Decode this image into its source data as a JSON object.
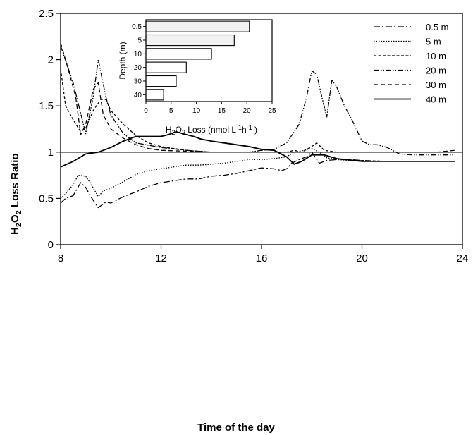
{
  "chart_data": [
    {
      "type": "line",
      "ylabel": "H2O2 Loss Ratio",
      "ylabel_parts": {
        "a": "H",
        "b": "2",
        "c": "O",
        "d": "2",
        "e": " Loss Ratio"
      },
      "xlabel": "Time of the day",
      "xlim": [
        8,
        24
      ],
      "ylim": [
        0,
        2.5
      ],
      "xticks": [
        "8",
        "12",
        "16",
        "20",
        "24"
      ],
      "yticks": [
        "0",
        "0.5",
        "1",
        "1.5",
        "2",
        "2.5"
      ],
      "reference_line": 1,
      "legend_position": "top-right",
      "series": [
        {
          "name": "0.5 m",
          "dash": "9 3 2 3",
          "width": 1.3,
          "x": [
            8.0,
            8.2,
            8.5,
            8.8,
            9.0,
            9.2,
            9.5,
            9.8,
            10.0,
            10.5,
            11.0,
            11.5,
            12.0,
            12.5,
            13.0,
            13.5,
            14.0,
            14.5,
            15.0,
            15.5,
            16.0,
            16.5,
            16.8,
            17.0,
            17.2,
            17.5,
            17.8,
            18.0,
            18.3,
            18.6,
            19.0,
            19.5,
            20.0,
            21.0,
            22.0,
            23.0,
            23.7
          ],
          "y": [
            0.45,
            0.5,
            0.53,
            0.67,
            0.62,
            0.52,
            0.4,
            0.46,
            0.45,
            0.52,
            0.57,
            0.63,
            0.67,
            0.69,
            0.71,
            0.71,
            0.74,
            0.75,
            0.77,
            0.8,
            0.83,
            0.82,
            0.8,
            0.82,
            0.88,
            0.92,
            0.95,
            1.0,
            0.88,
            0.91,
            0.92,
            0.92,
            0.91,
            0.9,
            0.9,
            0.9,
            0.9
          ]
        },
        {
          "name": "5 m",
          "dash": "1.5 2",
          "width": 1.3,
          "x": [
            8.0,
            8.2,
            8.5,
            8.7,
            9.0,
            9.2,
            9.5,
            9.7,
            10.0,
            10.5,
            11.0,
            11.5,
            12.0,
            12.5,
            13.0,
            13.5,
            14.0,
            14.5,
            15.0,
            15.5,
            16.0,
            16.5,
            17.0,
            17.3,
            17.7,
            18.0,
            18.3,
            18.6,
            19.0,
            19.5,
            20.0,
            21.0,
            22.0,
            23.0,
            23.7
          ],
          "y": [
            0.5,
            0.55,
            0.65,
            0.75,
            0.74,
            0.66,
            0.52,
            0.58,
            0.61,
            0.68,
            0.76,
            0.8,
            0.82,
            0.84,
            0.86,
            0.86,
            0.87,
            0.88,
            0.9,
            0.92,
            0.92,
            0.93,
            0.95,
            1.0,
            1.02,
            1.04,
            1.0,
            0.94,
            0.92,
            0.91,
            0.91,
            0.9,
            0.9,
            0.9,
            0.9
          ]
        },
        {
          "name": "10 m",
          "dash": "4 2.5",
          "width": 1.3,
          "x": [
            8.0,
            8.2,
            8.5,
            8.8,
            9.0,
            9.3,
            9.6,
            9.8,
            10.0,
            10.5,
            11.0,
            11.5,
            12.0,
            13.0,
            14.0,
            15.0,
            16.0,
            17.0,
            17.3,
            17.6,
            18.0,
            18.2,
            18.5,
            19.0,
            20.0,
            21.0,
            22.0,
            23.0,
            23.7
          ],
          "y": [
            1.9,
            1.5,
            1.35,
            1.22,
            1.26,
            1.45,
            1.57,
            1.57,
            1.45,
            1.3,
            1.18,
            1.1,
            1.06,
            1.02,
            1.0,
            1.0,
            1.0,
            1.0,
            1.02,
            1.0,
            1.06,
            1.1,
            1.02,
            1.0,
            1.0,
            1.0,
            1.0,
            1.0,
            1.0
          ]
        },
        {
          "name": "20 m",
          "dash": "8 2 1.5 2 1.5 2",
          "width": 1.3,
          "x": [
            8.0,
            8.5,
            9.0,
            9.3,
            9.5,
            9.8,
            10.0,
            10.5,
            11.0,
            12.0,
            13.0,
            14.0,
            15.0,
            15.5,
            16.0,
            16.5,
            17.0,
            17.5,
            17.8,
            18.0,
            18.2,
            18.4,
            18.6,
            18.8,
            19.0,
            19.3,
            19.6,
            20.0,
            20.3,
            20.6,
            21.0,
            21.5,
            22.0,
            23.0,
            23.7
          ],
          "y": [
            2.15,
            1.75,
            1.2,
            1.6,
            2.0,
            1.6,
            1.4,
            1.2,
            1.1,
            1.05,
            1.02,
            1.0,
            1.0,
            1.0,
            1.02,
            1.03,
            1.1,
            1.3,
            1.6,
            1.88,
            1.84,
            1.6,
            1.38,
            1.78,
            1.7,
            1.5,
            1.35,
            1.12,
            1.08,
            1.08,
            1.05,
            0.98,
            0.97,
            0.97,
            0.97
          ]
        },
        {
          "name": "30 m",
          "dash": "6 4",
          "width": 1.3,
          "x": [
            8.0,
            8.3,
            8.6,
            8.8,
            9.0,
            9.3,
            9.5,
            9.7,
            10.0,
            10.5,
            11.0,
            11.5,
            12.0,
            13.0,
            14.0,
            15.0,
            16.0,
            17.0,
            18.0,
            19.0,
            20.0,
            21.0,
            22.0,
            23.0,
            23.7
          ],
          "y": [
            2.18,
            1.9,
            1.6,
            1.19,
            1.3,
            1.68,
            1.75,
            1.4,
            1.25,
            1.15,
            1.08,
            1.04,
            1.02,
            1.01,
            1.0,
            1.0,
            1.0,
            1.0,
            1.0,
            1.0,
            1.0,
            1.0,
            1.0,
            1.0,
            1.02
          ]
        },
        {
          "name": "40 m",
          "dash": "",
          "width": 1.8,
          "x": [
            8.0,
            8.5,
            9.0,
            9.5,
            10.0,
            10.5,
            11.0,
            11.5,
            12.0,
            12.3,
            12.6,
            13.0,
            13.3,
            13.6,
            14.0,
            14.5,
            15.0,
            15.5,
            16.0,
            16.5,
            17.0,
            17.3,
            17.6,
            18.0,
            18.5,
            19.0,
            20.0,
            21.0,
            22.0,
            23.0,
            23.7
          ],
          "y": [
            0.84,
            0.9,
            0.98,
            1.0,
            1.05,
            1.12,
            1.17,
            1.17,
            1.17,
            1.19,
            1.22,
            1.19,
            1.17,
            1.14,
            1.12,
            1.1,
            1.08,
            1.06,
            1.03,
            1.02,
            0.95,
            0.87,
            0.9,
            0.97,
            0.97,
            0.93,
            0.9,
            0.9,
            0.9,
            0.9,
            0.9
          ]
        }
      ]
    },
    {
      "type": "bar",
      "orientation": "horizontal",
      "ylabel": "Depth (m)",
      "xlabel": "H2O2 Loss (nmol L-1h-1 )",
      "xlabel_parts": {
        "a": "H",
        "b": "2",
        "c": "O",
        "d": "2",
        "e": " Loss (nmol L",
        "f": "-1",
        "g": "h",
        "h": "-1",
        "i": " )"
      },
      "categories": [
        "0.5",
        "5",
        "10",
        "20",
        "30",
        "40"
      ],
      "values": [
        20.5,
        17.5,
        13,
        8,
        6,
        3.5
      ],
      "xlim": [
        0,
        25
      ],
      "xticks": [
        "0",
        "5",
        "10",
        "15",
        "20",
        "25"
      ]
    }
  ]
}
